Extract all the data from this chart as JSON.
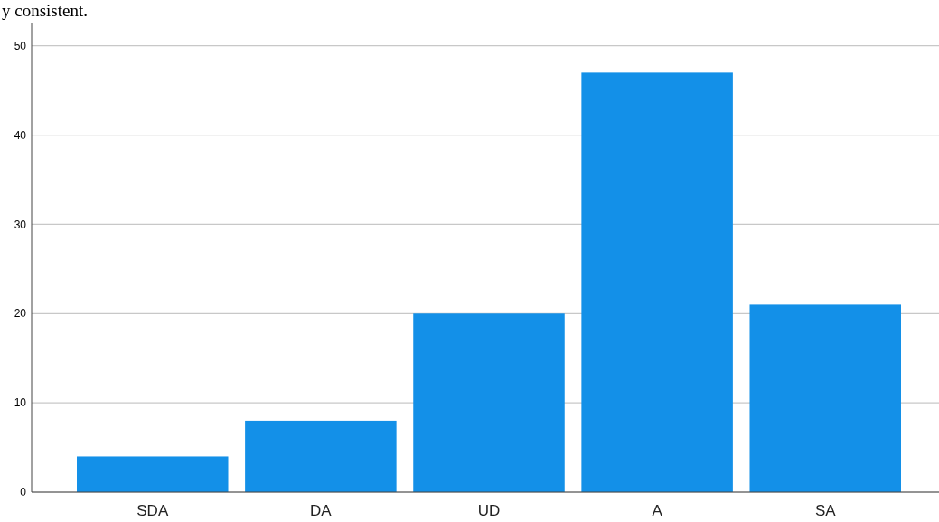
{
  "chart_data": {
    "type": "bar",
    "categories": [
      "SDA",
      "DA",
      "UD",
      "A",
      "SA"
    ],
    "values": [
      4,
      8,
      20,
      47,
      21
    ],
    "color": "#1390e8",
    "ylim": [
      0,
      52.5
    ],
    "yticks": [
      0,
      10,
      20,
      30,
      40,
      50
    ],
    "grid": "y",
    "annotations": [
      "y consistent."
    ]
  }
}
